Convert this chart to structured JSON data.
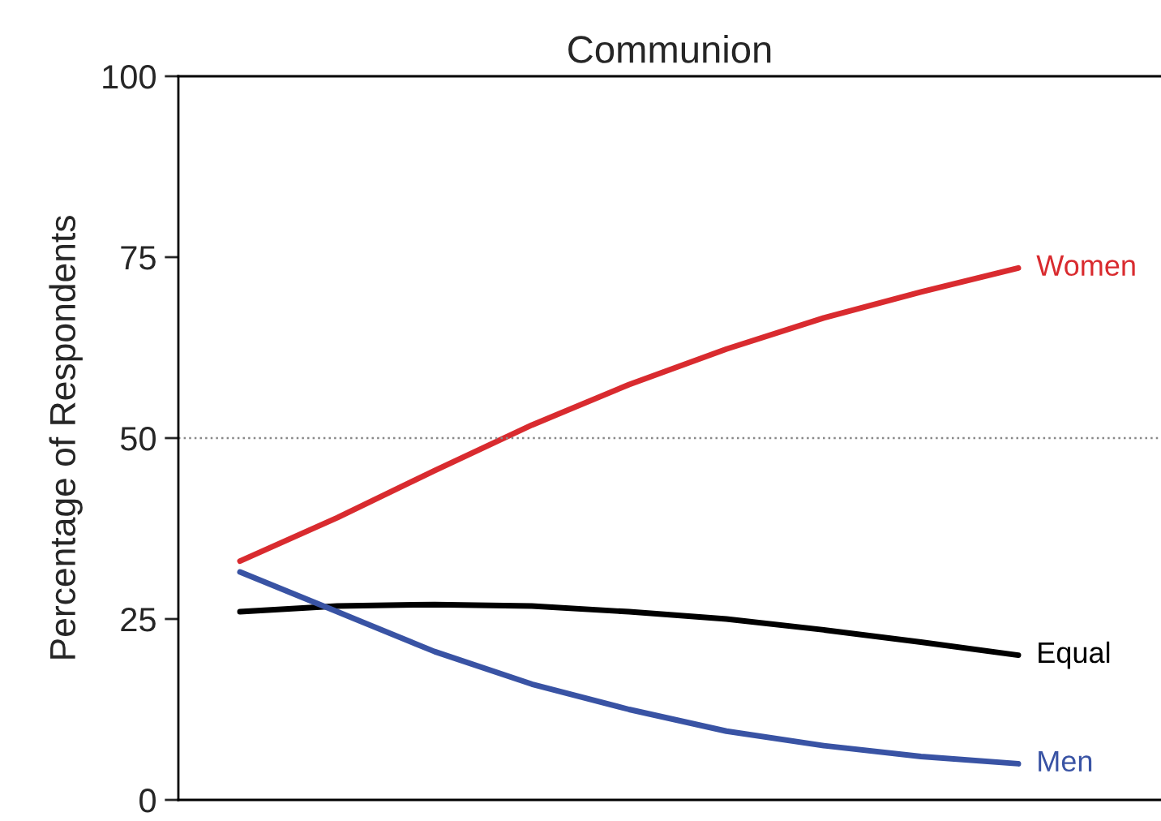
{
  "chart_data": {
    "type": "line",
    "title": "Communion",
    "ylabel": "Percentage of Respondents",
    "categories": [
      null,
      null,
      null,
      null,
      null,
      null,
      null,
      null,
      null
    ],
    "series": [
      {
        "name": "Women",
        "color": "#d92b2f",
        "values": [
          33,
          39,
          45.5,
          51.8,
          57.4,
          62.3,
          66.6,
          70.2,
          73.5
        ]
      },
      {
        "name": "Equal",
        "color": "#000000",
        "values": [
          26,
          26.8,
          27,
          26.8,
          26,
          25,
          23.5,
          21.8,
          20
        ]
      },
      {
        "name": "Men",
        "color": "#3953a4",
        "values": [
          31.5,
          26,
          20.5,
          16,
          12.5,
          9.5,
          7.5,
          6,
          5
        ]
      }
    ],
    "ylim": [
      0,
      100
    ],
    "yticks": [
      0,
      25,
      50,
      75,
      100
    ],
    "ref_lines": [
      {
        "axis": "y",
        "value": 50,
        "color": "#888888",
        "line_style": "dotted"
      }
    ],
    "grid": false,
    "marker": "none",
    "line_style": "solid"
  }
}
